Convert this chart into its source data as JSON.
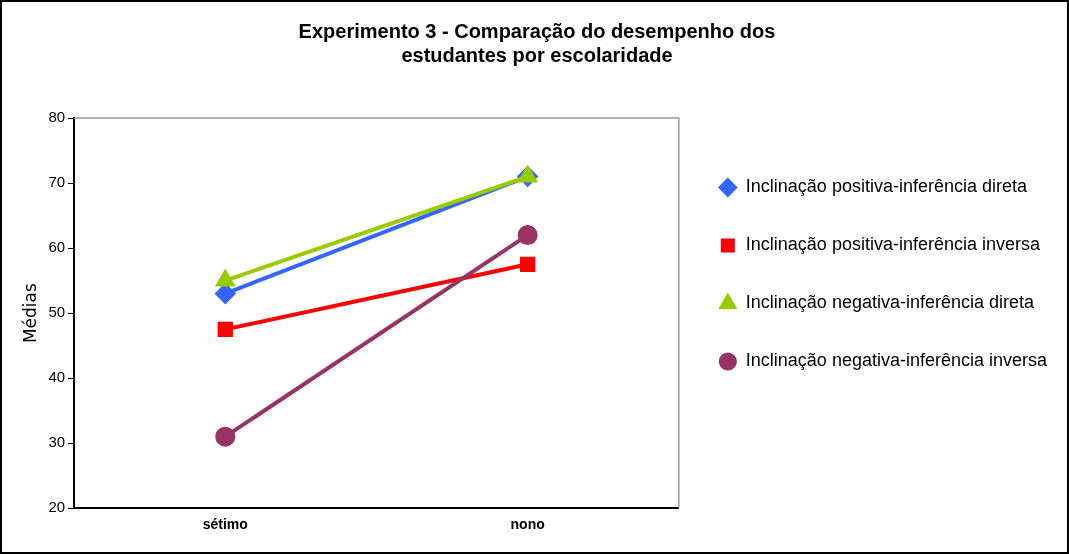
{
  "chart_data": {
    "type": "line",
    "title": [
      "Experimento 3 - Comparação do desempenho dos",
      "estudantes por escolaridade"
    ],
    "ylabel": "Médias",
    "categories": [
      "sétimo",
      "nono"
    ],
    "ylim": [
      20,
      80
    ],
    "yticks": [
      20,
      30,
      40,
      50,
      60,
      70,
      80
    ],
    "grid": false,
    "legend": "right",
    "line_style": "solid",
    "series": [
      {
        "name": "Inclinação positiva-inferência direta",
        "color": "#3366ff",
        "marker": "diamond",
        "values": [
          53,
          71
        ]
      },
      {
        "name": "Inclinação positiva-inferência inversa",
        "color": "#ff0000",
        "marker": "square",
        "values": [
          47.5,
          57.5
        ]
      },
      {
        "name": "Inclinação negativa-inferência direta",
        "color": "#99cc00",
        "marker": "triangle",
        "values": [
          55,
          71
        ]
      },
      {
        "name": "Inclinação negativa-inferência inversa",
        "color": "#993366",
        "marker": "circle",
        "values": [
          31,
          62
        ]
      }
    ]
  }
}
